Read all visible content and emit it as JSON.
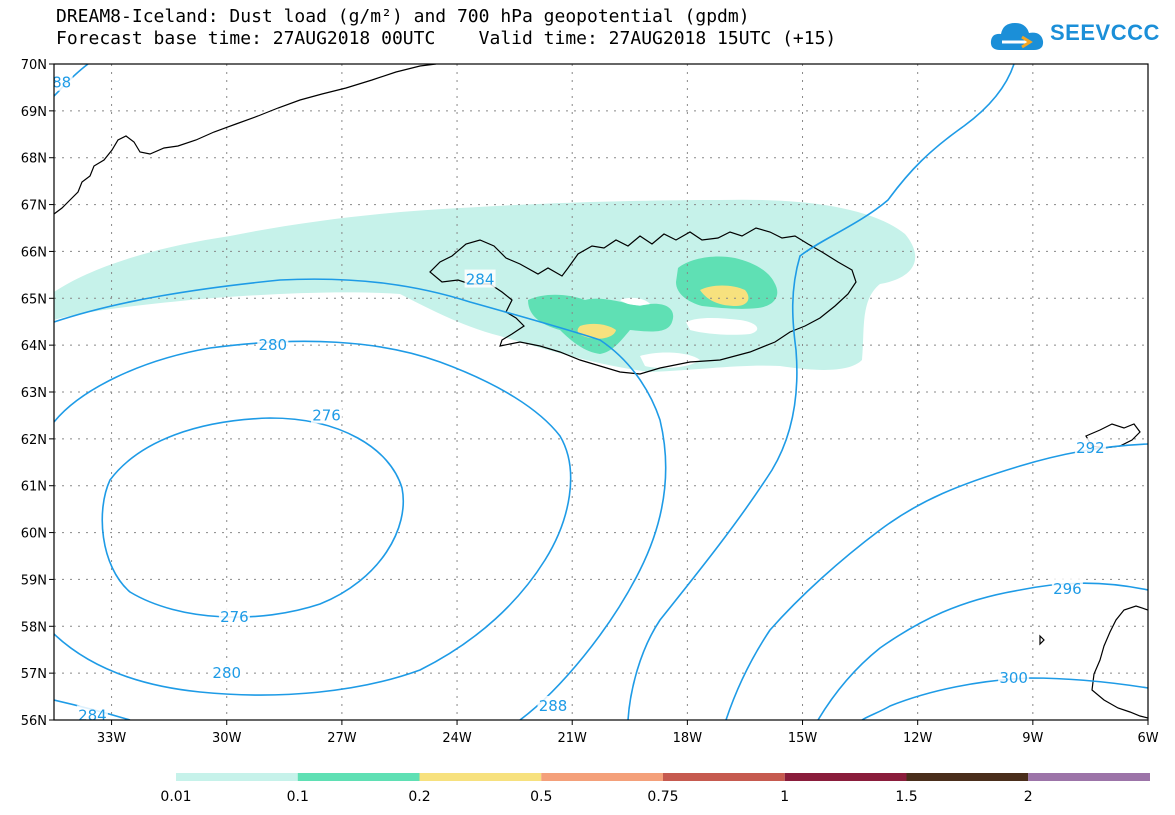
{
  "title": {
    "line1": "DREAM8-Iceland: Dust load (g/m²) and 700 hPa geopotential (gpdm)",
    "line2": "Forecast base time: 27AUG2018 00UTC    Valid time: 27AUG2018 15UTC (+15)"
  },
  "logo": {
    "text": "SEEVCCC",
    "icon": "cloud-icon"
  },
  "map": {
    "lat_labels": [
      "70N",
      "69N",
      "68N",
      "67N",
      "66N",
      "65N",
      "64N",
      "63N",
      "62N",
      "61N",
      "60N",
      "59N",
      "58N",
      "57N",
      "56N"
    ],
    "lon_labels": [
      "33W",
      "30W",
      "27W",
      "24W",
      "21W",
      "18W",
      "15W",
      "12W",
      "9W",
      "6W"
    ],
    "lat_range": [
      56,
      70
    ],
    "lon_range": [
      -34.5,
      -6
    ],
    "grid": "dotted"
  },
  "contours": {
    "color": "#1e9be6",
    "labels": [
      {
        "value": "88",
        "lon": -34.3,
        "lat": 69.6
      },
      {
        "value": "284",
        "lon": -23.4,
        "lat": 65.4
      },
      {
        "value": "280",
        "lon": -28.8,
        "lat": 64.0
      },
      {
        "value": "276",
        "lon": -27.4,
        "lat": 62.5
      },
      {
        "value": "276",
        "lon": -29.8,
        "lat": 58.2
      },
      {
        "value": "280",
        "lon": -30.0,
        "lat": 57.0
      },
      {
        "value": "284",
        "lon": -33.5,
        "lat": 56.1
      },
      {
        "value": "288",
        "lon": -21.5,
        "lat": 56.3
      },
      {
        "value": "292",
        "lon": -7.5,
        "lat": 61.8
      },
      {
        "value": "296",
        "lon": -8.1,
        "lat": 58.8
      },
      {
        "value": "300",
        "lon": -9.5,
        "lat": 56.9
      }
    ]
  },
  "colorbar": {
    "labels": [
      "0.01",
      "0.1",
      "0.2",
      "0.5",
      "0.75",
      "1",
      "1.5",
      "2"
    ],
    "colors": [
      "#c6f2ea",
      "#5fe0b4",
      "#f7e17e",
      "#f4a07a",
      "#c65a4f",
      "#8a1d3b",
      "#4a2e1b",
      "#9c74a8"
    ]
  }
}
